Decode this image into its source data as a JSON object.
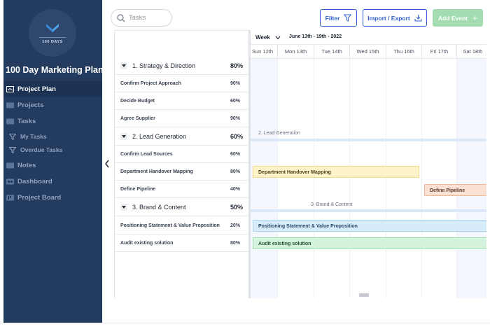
{
  "app": {
    "logo_text": "100 DAYS",
    "plan_title": "100 Day Marketing Plan"
  },
  "sidebar": {
    "items": [
      {
        "label": "Project Plan",
        "active": true,
        "icon": "gantt-icon"
      },
      {
        "label": "Projects",
        "icon": "folder-icon"
      },
      {
        "label": "Tasks",
        "icon": "task-list-icon"
      },
      {
        "label": "My Tasks",
        "icon": "filter-icon"
      },
      {
        "label": "Overdue Tasks",
        "icon": "filter-icon"
      },
      {
        "label": "Notes",
        "icon": "notes-icon"
      },
      {
        "label": "Dashboard",
        "icon": "dashboard-icon"
      },
      {
        "label": "Project Board",
        "icon": "board-icon"
      }
    ]
  },
  "toolbar": {
    "search_placeholder": "Tasks",
    "filter_label": "Filter",
    "import_export_label": "Import / Export",
    "add_event_label": "Add Event"
  },
  "gantt": {
    "view_label": "Week",
    "range_label": "June 13th - 19th - 2022",
    "days": [
      "Sun 12th",
      "Mon 13th",
      "Tue 14th",
      "Wed 15th",
      "Thu 16th",
      "Fri 17th",
      "Sat 18th"
    ]
  },
  "tasks": [
    {
      "name": "1. Strategy & Direction",
      "pct": "80%"
    },
    {
      "name": "Confirm Project Approach",
      "pct": "90%"
    },
    {
      "name": "Decide Budget",
      "pct": "60%"
    },
    {
      "name": "Agree Supplier",
      "pct": "90%"
    },
    {
      "name": "2. Lead Generation",
      "pct": "60%"
    },
    {
      "name": "Confirm Lead Sources",
      "pct": "60%"
    },
    {
      "name": "Department Handover Mapping",
      "pct": "80%"
    },
    {
      "name": "Define Pipeline",
      "pct": "40%"
    },
    {
      "name": "3. Brand & Content",
      "pct": "50%"
    },
    {
      "name": "Positioning Statement & Value Proposition",
      "pct": "20%"
    },
    {
      "name": "Audit existing solution",
      "pct": "80%"
    }
  ],
  "timeline": {
    "group_labels": [
      "2. Lead Generation",
      "3. Brand & Content"
    ],
    "bars": [
      {
        "label": "Department Handover Mapping",
        "color": "#fdf3c8",
        "border": "#f0dc8a",
        "text": "#4a4020"
      },
      {
        "label": "Define Pipeline",
        "color": "#fbe0d4",
        "border": "#f3b9a0",
        "text": "#5a3a2c"
      },
      {
        "label": "Positioning Statement & Value Proposition",
        "color": "#d6ecfa",
        "border": "#a9d3f0",
        "text": "#244866"
      },
      {
        "label": "Audit existing solution",
        "color": "#d3f3dc",
        "border": "#a6e2b6",
        "text": "#24502f"
      }
    ]
  },
  "colors": {
    "sidebar_bg": "#233b5e",
    "accent_blue": "#2e5fd0",
    "add_green": "#a3dcb1"
  }
}
